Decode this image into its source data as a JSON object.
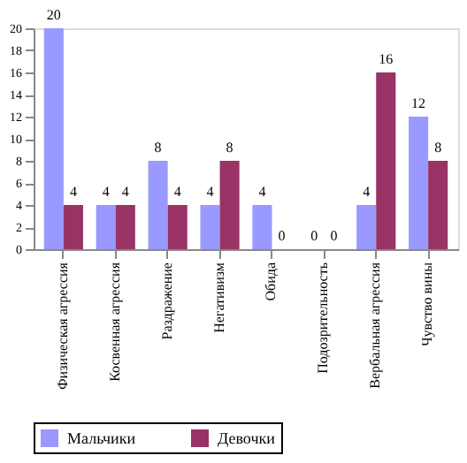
{
  "chart_data": {
    "type": "bar",
    "categories": [
      "Физическая агрессия",
      "Косвенная агрессия",
      "Раздражение",
      "Негативизм",
      "Обида",
      "Подозрительность",
      "Вербальная агрессия",
      "Чувство вины"
    ],
    "series": [
      {
        "name": "Мальчики",
        "color": "#9999ff",
        "values": [
          20,
          4,
          8,
          4,
          4,
          0,
          4,
          12
        ]
      },
      {
        "name": "Девочки",
        "color": "#993366",
        "values": [
          4,
          4,
          4,
          8,
          0,
          0,
          16,
          8
        ]
      }
    ],
    "ylim": [
      0,
      20
    ],
    "yticks": [
      0,
      2,
      4,
      6,
      8,
      10,
      12,
      14,
      16,
      18,
      20
    ],
    "data_labels": true,
    "legend": "bottom",
    "grid": false
  }
}
